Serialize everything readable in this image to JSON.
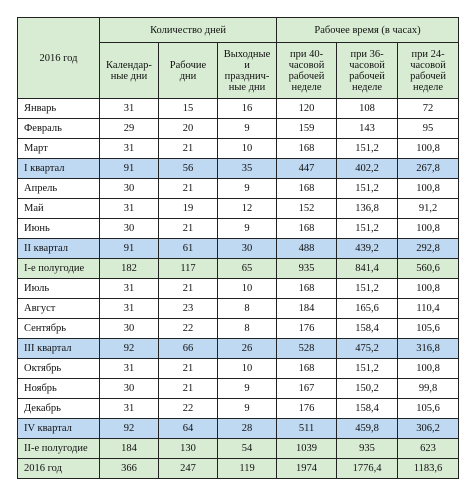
{
  "header": {
    "year_label": "2016 год",
    "days_group": "Количество дней",
    "hours_group": "Рабочее время (в часах)",
    "columns": [
      "Календар-ные дни",
      "Рабочие дни",
      "Выходные и празднич-ные дни",
      "при 40-часовой рабочей неделе",
      "при 36-часовой рабочей неделе",
      "при 24-часовой рабочей неделе"
    ]
  },
  "rows": [
    {
      "kind": "month",
      "cells": [
        "Январь",
        "31",
        "15",
        "16",
        "120",
        "108",
        "72"
      ]
    },
    {
      "kind": "month",
      "cells": [
        "Февраль",
        "29",
        "20",
        "9",
        "159",
        "143",
        "95"
      ]
    },
    {
      "kind": "month",
      "cells": [
        "Март",
        "31",
        "21",
        "10",
        "168",
        "151,2",
        "100,8"
      ]
    },
    {
      "kind": "quarter",
      "cells": [
        "I квартал",
        "91",
        "56",
        "35",
        "447",
        "402,2",
        "267,8"
      ]
    },
    {
      "kind": "month",
      "cells": [
        "Апрель",
        "30",
        "21",
        "9",
        "168",
        "151,2",
        "100,8"
      ]
    },
    {
      "kind": "month",
      "cells": [
        "Май",
        "31",
        "19",
        "12",
        "152",
        "136,8",
        "91,2"
      ]
    },
    {
      "kind": "month",
      "cells": [
        "Июнь",
        "30",
        "21",
        "9",
        "168",
        "151,2",
        "100,8"
      ]
    },
    {
      "kind": "quarter",
      "cells": [
        "II квартал",
        "91",
        "61",
        "30",
        "488",
        "439,2",
        "292,8"
      ]
    },
    {
      "kind": "half",
      "cells": [
        "I-е полугодие",
        "182",
        "117",
        "65",
        "935",
        "841,4",
        "560,6"
      ]
    },
    {
      "kind": "month",
      "cells": [
        "Июль",
        "31",
        "21",
        "10",
        "168",
        "151,2",
        "100,8"
      ]
    },
    {
      "kind": "month",
      "cells": [
        "Август",
        "31",
        "23",
        "8",
        "184",
        "165,6",
        "110,4"
      ]
    },
    {
      "kind": "month",
      "cells": [
        "Сентябрь",
        "30",
        "22",
        "8",
        "176",
        "158,4",
        "105,6"
      ]
    },
    {
      "kind": "quarter",
      "cells": [
        "III квартал",
        "92",
        "66",
        "26",
        "528",
        "475,2",
        "316,8"
      ]
    },
    {
      "kind": "month",
      "cells": [
        "Октябрь",
        "31",
        "21",
        "10",
        "168",
        "151,2",
        "100,8"
      ]
    },
    {
      "kind": "month",
      "cells": [
        "Ноябрь",
        "30",
        "21",
        "9",
        "167",
        "150,2",
        "99,8"
      ]
    },
    {
      "kind": "month",
      "cells": [
        "Декабрь",
        "31",
        "22",
        "9",
        "176",
        "158,4",
        "105,6"
      ]
    },
    {
      "kind": "quarter",
      "cells": [
        "IV квартал",
        "92",
        "64",
        "28",
        "511",
        "459,8",
        "306,2"
      ]
    },
    {
      "kind": "half",
      "cells": [
        "II-е полугодие",
        "184",
        "130",
        "54",
        "1039",
        "935",
        "623"
      ]
    },
    {
      "kind": "year",
      "cells": [
        "2016 год",
        "366",
        "247",
        "119",
        "1974",
        "1776,4",
        "1183,6"
      ]
    }
  ],
  "colors": {
    "header_bg": "#d8ecd3",
    "quarter_bg": "#bfd9f2",
    "half_bg": "#d8ecd3",
    "border": "#222222"
  }
}
